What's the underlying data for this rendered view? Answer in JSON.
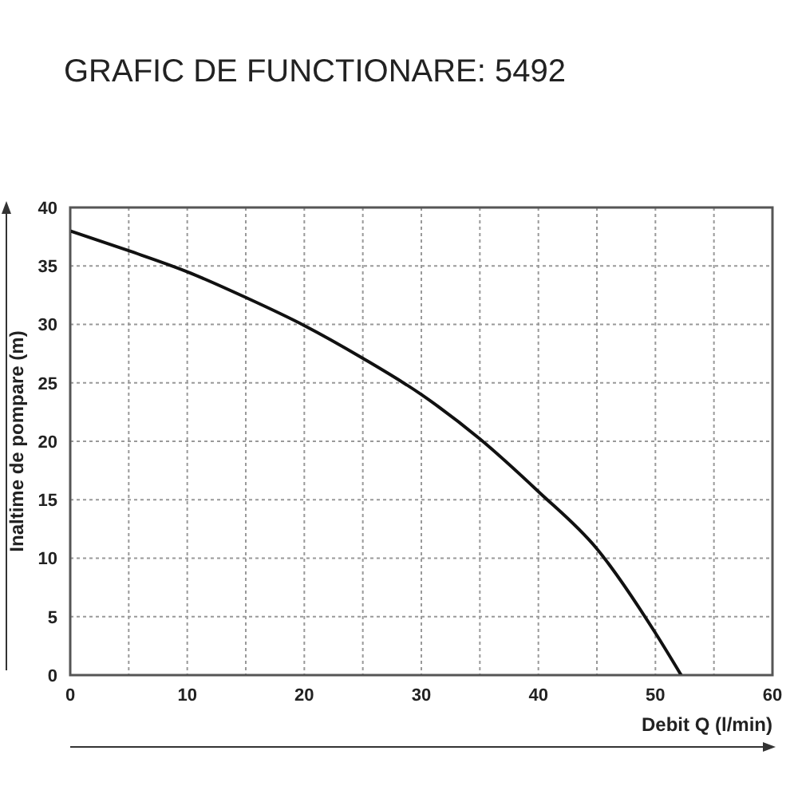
{
  "chart_data": {
    "type": "line",
    "title": "GRAFIC DE FUNCTIONARE: 5492",
    "xlabel": "Debit   Q (l/min)",
    "ylabel": "Inaltime de pompare (m)",
    "x": [
      0,
      5,
      10,
      15,
      20,
      25,
      30,
      35,
      40,
      45,
      50,
      52.2
    ],
    "series": [
      {
        "color": "#111111",
        "values": [
          38,
          36.3,
          34.5,
          32.3,
          29.9,
          27.1,
          24,
          20.2,
          15.7,
          10.8,
          3.6,
          0
        ]
      }
    ],
    "xlim": [
      0,
      60
    ],
    "xticks": [
      0,
      {
        "value": 5,
        "label": null
      },
      10,
      {
        "value": 15,
        "label": null
      },
      20,
      {
        "value": 25,
        "label": null
      },
      30,
      {
        "value": 35,
        "label": null
      },
      40,
      {
        "value": 45,
        "label": null
      },
      50,
      {
        "value": 55,
        "label": null
      },
      60
    ],
    "ylim": [
      0,
      40
    ],
    "yticks": [
      0,
      5,
      10,
      15,
      20,
      25,
      30,
      35,
      40
    ],
    "grid": true,
    "marker": "none",
    "line_style": "solid",
    "legend": false
  }
}
